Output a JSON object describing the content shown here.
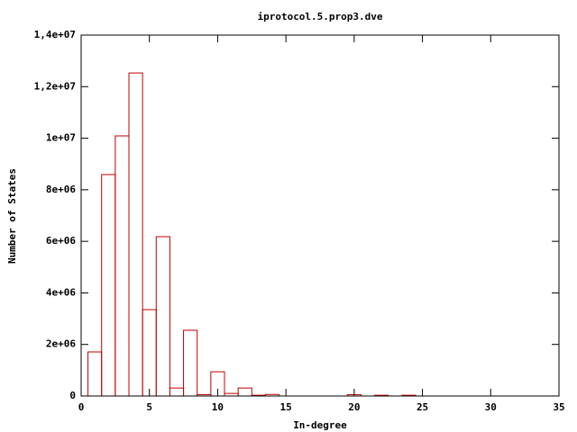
{
  "chart_data": {
    "type": "histogram",
    "title": "iprotocol.5.prop3.dve",
    "x_label": "In-degree",
    "y_label": "Number of States",
    "bins": [
      0.5,
      1.5,
      2.5,
      3.5,
      4.5,
      5.5,
      6.5,
      7.5,
      8.5,
      9.5,
      10.5,
      11.5,
      12.5,
      13.5,
      14.5,
      15.5,
      16.5,
      17.5,
      18.5,
      19.5,
      20.5,
      21.5,
      22.5,
      23.5,
      24.5
    ],
    "counts": [
      1710000,
      8590000,
      10090000,
      12530000,
      3350000,
      6180000,
      310000,
      2550000,
      50000,
      940000,
      100000,
      310000,
      30000,
      60000,
      0,
      0,
      0,
      0,
      0,
      50000,
      0,
      30000,
      0,
      30000
    ],
    "color": "#c00000",
    "xlim": [
      0,
      35
    ],
    "xticks": [
      0,
      5,
      10,
      15,
      20,
      25,
      30,
      35
    ],
    "ylim": [
      0,
      14000000
    ],
    "yticks": [
      0,
      {
        "value": 2000000,
        "label": "2e+06"
      },
      {
        "value": 4000000,
        "label": "4e+06"
      },
      {
        "value": 6000000,
        "label": "6e+06"
      },
      {
        "value": 8000000,
        "label": "8e+06"
      },
      {
        "value": 10000000,
        "label": "1e+07"
      },
      {
        "value": 12000000,
        "label": "1,2e+07"
      },
      {
        "value": 14000000,
        "label": "1,4e+07"
      }
    ]
  }
}
